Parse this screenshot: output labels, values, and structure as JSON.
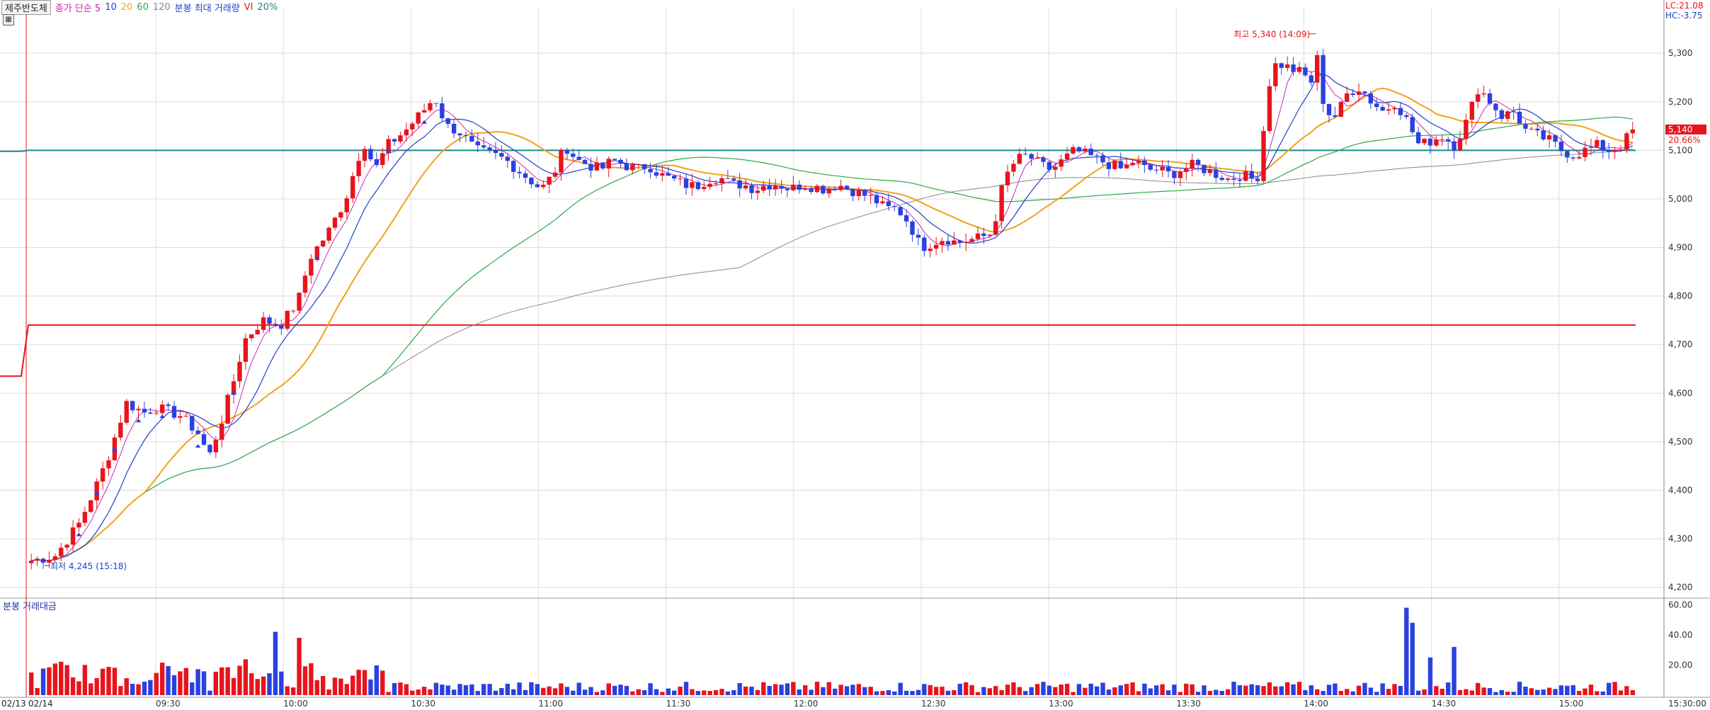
{
  "header": {
    "stock_name": "제주반도체",
    "indicator_1": "종가 단순 5",
    "ma_10": "10",
    "ma_20": "20",
    "ma_60": "60",
    "ma_120": "120",
    "volume_label": "분봉 최대 거래량",
    "vi_label": "VI",
    "vi_pct": "20%",
    "settings_icon": "grid-icon"
  },
  "top_right": {
    "lc": "LC:21.08",
    "hc": "HC:-3.75"
  },
  "price_axis": {
    "ticks": [
      "5,300",
      "5,200",
      "5,100",
      "5,000",
      "4,900",
      "4,800",
      "4,700",
      "4,600",
      "4,500",
      "4,400",
      "4,300",
      "4,200"
    ],
    "current_price": "5,140",
    "current_pct": "20.66%"
  },
  "volume_panel": {
    "title": "분봉 거래대금",
    "ticks": [
      "60.00",
      "40.00",
      "20.00"
    ]
  },
  "time_axis": {
    "date_left": "02/13",
    "date_right": "02/14",
    "labels": [
      "09:30",
      "10:00",
      "10:30",
      "11:00",
      "11:30",
      "12:00",
      "12:30",
      "13:00",
      "13:30",
      "14:00",
      "14:30",
      "15:00"
    ],
    "end_label": "15:30:00"
  },
  "annotations": {
    "high": "최고 5,340 (14:09)",
    "low": "최저 4,245 (15:18)"
  },
  "colors": {
    "up": "#e8141c",
    "down": "#2a41e0",
    "ma5": "#c82ab0",
    "ma10": "#2040c8",
    "ma20": "#f2a21a",
    "ma60": "#2aa84a",
    "ma120": "#8a8a8a",
    "vi_line": "#e8141c",
    "prev_close_line": "#1a8a8a",
    "grid": "#dddddd"
  },
  "chart_data": {
    "type": "candlestick",
    "price_range": [
      4185,
      5395
    ],
    "reference_lines": {
      "upper_vi": 5100,
      "lower_vi": 4740,
      "pre_upper": 5098,
      "pre_lower": 4635
    },
    "keypoints": [
      [
        0,
        4255
      ],
      [
        20,
        4265
      ],
      [
        40,
        4330
      ],
      [
        55,
        4410
      ],
      [
        65,
        4470
      ],
      [
        80,
        4580
      ],
      [
        95,
        4560
      ],
      [
        105,
        4570
      ],
      [
        125,
        4555
      ],
      [
        140,
        4520
      ],
      [
        150,
        4470
      ],
      [
        160,
        4540
      ],
      [
        170,
        4620
      ],
      [
        180,
        4710
      ],
      [
        195,
        4750
      ],
      [
        210,
        4740
      ],
      [
        225,
        4790
      ],
      [
        235,
        4880
      ],
      [
        250,
        4930
      ],
      [
        265,
        5000
      ],
      [
        280,
        5120
      ],
      [
        290,
        5060
      ],
      [
        300,
        5110
      ],
      [
        315,
        5140
      ],
      [
        330,
        5180
      ],
      [
        340,
        5210
      ],
      [
        350,
        5150
      ],
      [
        360,
        5140
      ],
      [
        375,
        5100
      ],
      [
        390,
        5090
      ],
      [
        400,
        5080
      ],
      [
        410,
        5060
      ],
      [
        420,
        5040
      ],
      [
        430,
        5020
      ],
      [
        440,
        5050
      ],
      [
        450,
        5110
      ],
      [
        460,
        5080
      ],
      [
        470,
        5070
      ],
      [
        480,
        5060
      ],
      [
        490,
        5080
      ],
      [
        500,
        5070
      ],
      [
        510,
        5060
      ],
      [
        520,
        5070
      ],
      [
        530,
        5050
      ],
      [
        540,
        5040
      ],
      [
        550,
        5030
      ],
      [
        560,
        5025
      ],
      [
        570,
        5040
      ],
      [
        580,
        5045
      ],
      [
        590,
        5030
      ],
      [
        600,
        5030
      ],
      [
        610,
        5020
      ],
      [
        620,
        5030
      ],
      [
        630,
        5030
      ],
      [
        640,
        5020
      ],
      [
        650,
        5030
      ],
      [
        660,
        5025
      ],
      [
        670,
        5020
      ],
      [
        680,
        5030
      ],
      [
        690,
        5020
      ],
      [
        700,
        5010
      ],
      [
        710,
        5000
      ],
      [
        720,
        4980
      ],
      [
        730,
        4980
      ],
      [
        740,
        4950
      ],
      [
        750,
        4900
      ],
      [
        760,
        4910
      ],
      [
        770,
        4920
      ],
      [
        780,
        4910
      ],
      [
        790,
        4915
      ],
      [
        800,
        4920
      ],
      [
        810,
        4930
      ],
      [
        820,
        5040
      ],
      [
        830,
        5080
      ],
      [
        840,
        5090
      ],
      [
        850,
        5070
      ],
      [
        860,
        5060
      ],
      [
        870,
        5080
      ],
      [
        880,
        5100
      ],
      [
        890,
        5090
      ],
      [
        900,
        5080
      ],
      [
        910,
        5070
      ],
      [
        920,
        5060
      ],
      [
        930,
        5080
      ],
      [
        940,
        5060
      ],
      [
        950,
        5060
      ],
      [
        960,
        5050
      ],
      [
        970,
        5060
      ],
      [
        980,
        5070
      ],
      [
        990,
        5060
      ],
      [
        1000,
        5050
      ],
      [
        1010,
        5040
      ],
      [
        1020,
        5050
      ],
      [
        1030,
        5040
      ],
      [
        1035,
        5050
      ],
      [
        1040,
        5170
      ],
      [
        1045,
        5260
      ],
      [
        1050,
        5280
      ],
      [
        1060,
        5270
      ],
      [
        1070,
        5260
      ],
      [
        1080,
        5240
      ],
      [
        1085,
        5300
      ],
      [
        1090,
        5180
      ],
      [
        1100,
        5170
      ],
      [
        1110,
        5220
      ],
      [
        1120,
        5230
      ],
      [
        1130,
        5200
      ],
      [
        1140,
        5180
      ],
      [
        1150,
        5200
      ],
      [
        1160,
        5160
      ],
      [
        1170,
        5110
      ],
      [
        1180,
        5120
      ],
      [
        1190,
        5130
      ],
      [
        1200,
        5110
      ],
      [
        1210,
        5160
      ],
      [
        1220,
        5230
      ],
      [
        1230,
        5200
      ],
      [
        1240,
        5170
      ],
      [
        1250,
        5180
      ],
      [
        1260,
        5140
      ],
      [
        1270,
        5130
      ],
      [
        1280,
        5120
      ],
      [
        1290,
        5100
      ],
      [
        1300,
        5090
      ],
      [
        1310,
        5100
      ],
      [
        1320,
        5110
      ],
      [
        1330,
        5100
      ],
      [
        1340,
        5110
      ],
      [
        1345,
        5125
      ],
      [
        1350,
        5140
      ]
    ],
    "volume_spikes": [
      [
        205,
        42
      ],
      [
        225,
        38
      ],
      [
        1160,
        58
      ],
      [
        1165,
        48
      ],
      [
        1180,
        25
      ],
      [
        1200,
        32
      ]
    ]
  }
}
